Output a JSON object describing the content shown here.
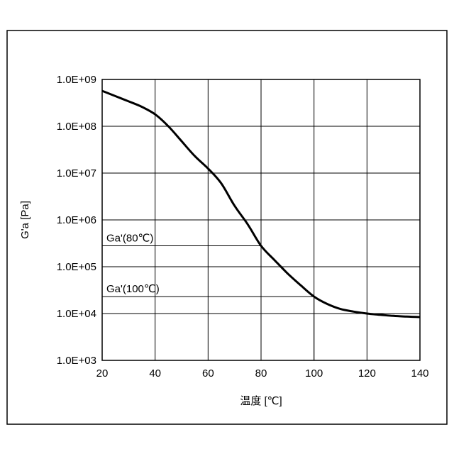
{
  "chart_data": {
    "type": "line",
    "title": "",
    "xlabel": "温度 [℃]",
    "ylabel": "G'a [Pa]",
    "xlim": [
      20,
      140
    ],
    "ylim": [
      1000,
      1000000000
    ],
    "yscale": "log",
    "grid": true,
    "xticks": [
      "20",
      "40",
      "60",
      "80",
      "100",
      "120",
      "140"
    ],
    "yticks": [
      "1.0E+03",
      "1.0E+04",
      "1.0E+05",
      "1.0E+06",
      "1.0E+07",
      "1.0E+08",
      "1.0E+09"
    ],
    "series": [
      {
        "name": "",
        "x": [
          20,
          25,
          30,
          35,
          40,
          45,
          50,
          55,
          60,
          65,
          70,
          75,
          80,
          85,
          90,
          95,
          100,
          105,
          110,
          115,
          120,
          125,
          130,
          135,
          140
        ],
        "y": [
          570000000,
          440000000,
          340000000,
          260000000,
          180000000,
          100000000,
          48000000,
          23000000,
          12500000,
          6000000,
          2000000,
          800000,
          280000,
          140000,
          72000,
          40000,
          23000,
          16000,
          12500,
          11000,
          10000,
          9400,
          8900,
          8600,
          8400
        ]
      }
    ],
    "annotations": [
      {
        "label": "Ga'(80℃)",
        "x": 80,
        "y": 280000
      },
      {
        "label": "Ga'(100℃)",
        "x": 100,
        "y": 23000
      }
    ]
  },
  "colors": {
    "line": "#000000",
    "grid": "#000000",
    "frame": "#000000",
    "background": "#ffffff"
  }
}
